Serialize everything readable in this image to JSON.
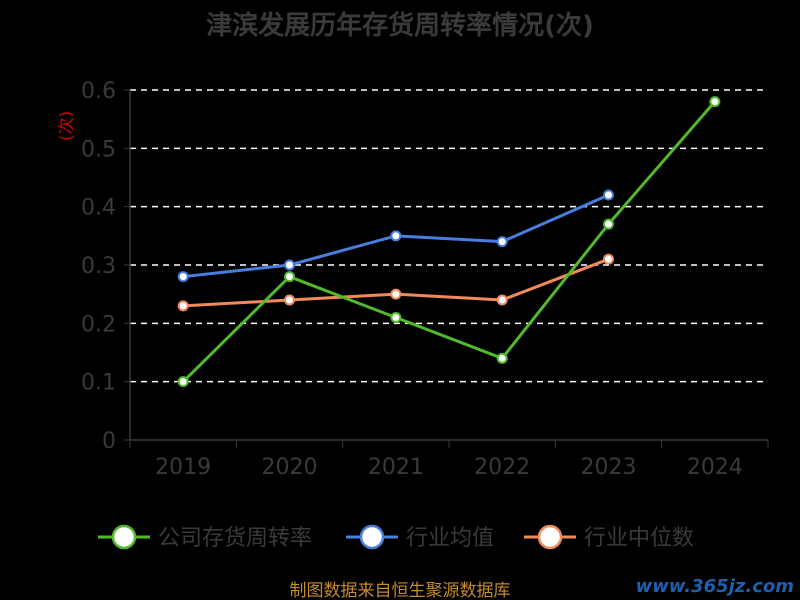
{
  "chart_data": {
    "type": "line",
    "title": "津滨发展历年存货周转率情况(次)",
    "ylabel": "(次)",
    "xlabel": "",
    "categories": [
      "2019",
      "2020",
      "2021",
      "2022",
      "2023",
      "2024"
    ],
    "ylim": [
      0,
      0.6
    ],
    "yticks": [
      "0",
      "0.1",
      "0.2",
      "0.3",
      "0.4",
      "0.5",
      "0.6"
    ],
    "grid": true,
    "legend_position": "bottom",
    "series": [
      {
        "name": "公司存货周转率",
        "color": "#52b82c",
        "values": [
          0.1,
          0.28,
          0.21,
          0.14,
          0.37,
          0.58
        ]
      },
      {
        "name": "行业均值",
        "color": "#4a7de0",
        "values": [
          0.28,
          0.3,
          0.35,
          0.34,
          0.42,
          null
        ]
      },
      {
        "name": "行业中位数",
        "color": "#f08a5d",
        "values": [
          0.23,
          0.24,
          0.25,
          0.24,
          0.31,
          null
        ]
      }
    ]
  },
  "footer": {
    "source": "制图数据来自恒生聚源数据库",
    "watermark": "www.365jz.com"
  }
}
